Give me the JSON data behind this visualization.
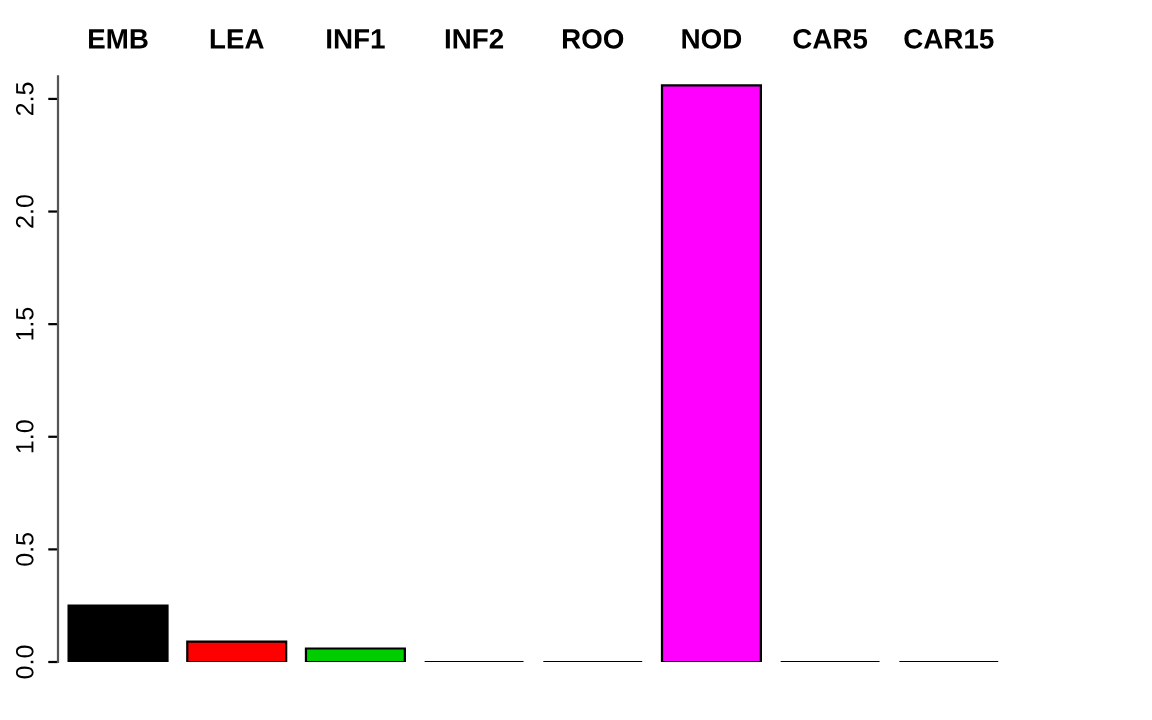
{
  "chart_data": {
    "type": "bar",
    "categories": [
      "EMB",
      "LEA",
      "INF1",
      "INF2",
      "ROO",
      "NOD",
      "CAR5",
      "CAR15"
    ],
    "values": [
      0.25,
      0.09,
      0.06,
      0.0,
      0.0,
      2.56,
      0.0,
      0.0
    ],
    "colors": [
      "#000000",
      "#ff0000",
      "#00cd00",
      "#000000",
      "#000000",
      "#ff00ff",
      "#000000",
      "#000000"
    ],
    "ylim": [
      0,
      2.6
    ],
    "yticks": [
      {
        "value": 0,
        "label": "0.0"
      },
      {
        "value": 0.5,
        "label": "0.5"
      },
      {
        "value": 1,
        "label": "1.0"
      },
      {
        "value": 1.5,
        "label": "1.5"
      },
      {
        "value": 2,
        "label": "2.0"
      },
      {
        "value": 2.5,
        "label": "2.5"
      }
    ],
    "grid": false,
    "legend": false
  }
}
